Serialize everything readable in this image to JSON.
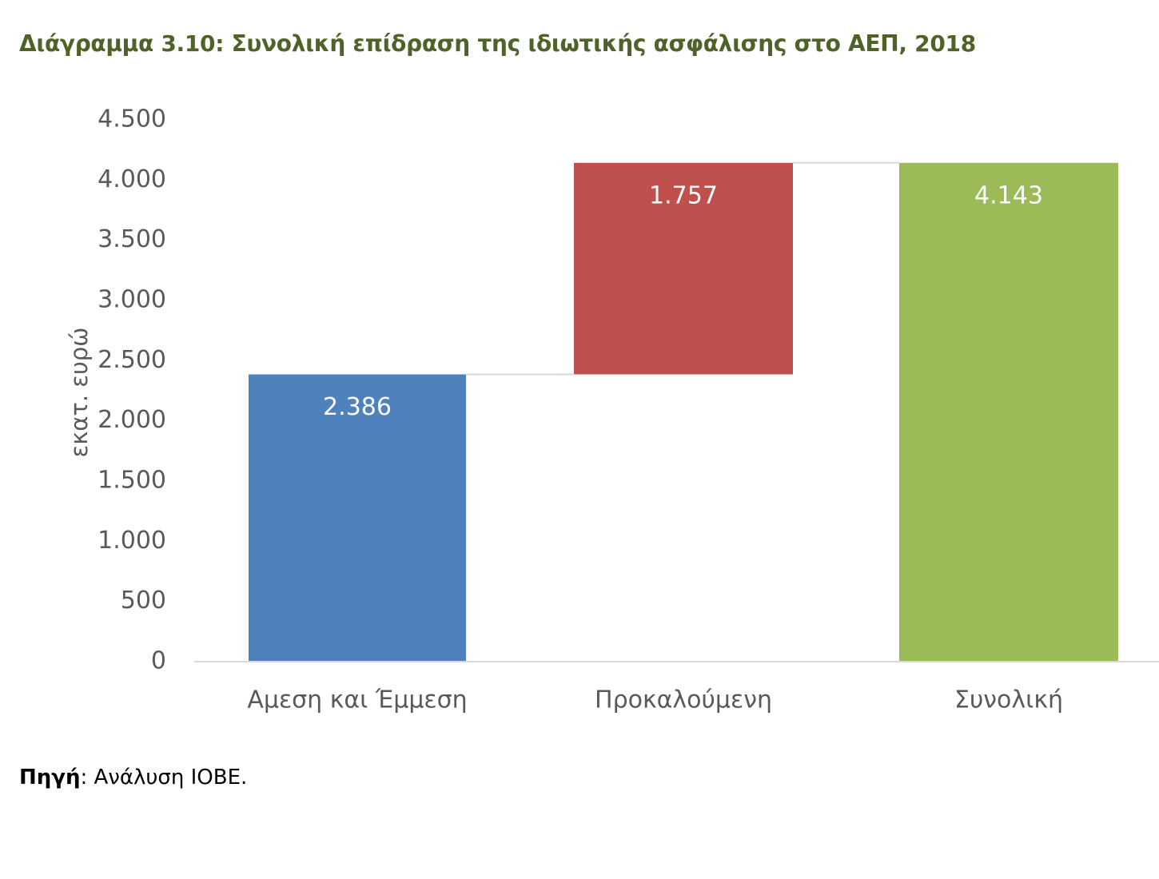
{
  "figure": {
    "title": "Διάγραμμα 3.10: Συνολική επίδραση της ιδιωτικής ασφάλισης στο ΑΕΠ, 2018",
    "title_color": "#4f6228"
  },
  "chart_data": {
    "type": "bar",
    "subtype": "waterfall",
    "categories": [
      "Αμεση και Έμμεση",
      "Προκαλούμενη",
      "Συνολική"
    ],
    "values": [
      2386,
      1757,
      4143
    ],
    "bar_starts": [
      0,
      2386,
      0
    ],
    "data_labels": [
      "2.386",
      "1.757",
      "4.143"
    ],
    "colors": [
      "#4f81bd",
      "#c0504d",
      "#9bbb59"
    ],
    "ylabel": "εκατ. ευρώ",
    "xlabel": "",
    "ylim": [
      0,
      4500
    ],
    "yticks": [
      0,
      500,
      1000,
      1500,
      2000,
      2500,
      3000,
      3500,
      4000,
      4500
    ],
    "ytick_labels": [
      "0",
      "500",
      "1.000",
      "1.500",
      "2.000",
      "2.500",
      "3.000",
      "3.500",
      "4.000",
      "4.500"
    ],
    "grid": false,
    "connector_lines": true
  },
  "source": {
    "label": "Πηγή",
    "separator": ":",
    "text": " Ανάλυση ΙΟΒΕ."
  }
}
